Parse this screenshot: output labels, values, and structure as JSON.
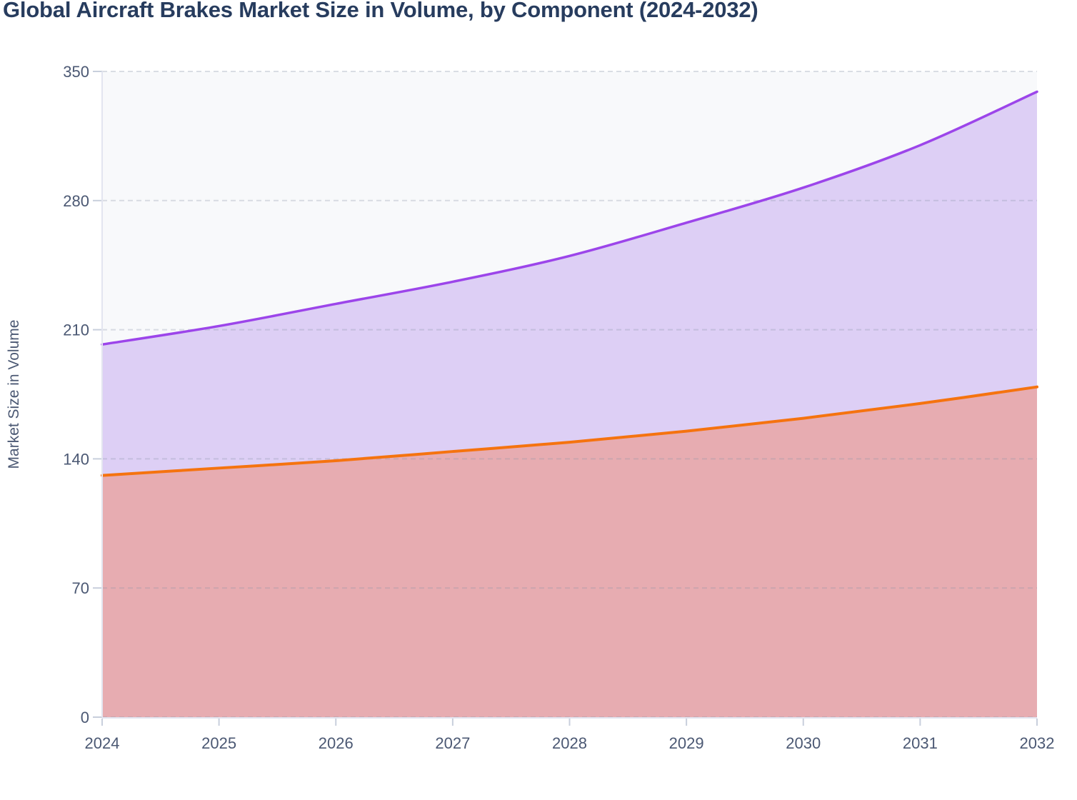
{
  "title": {
    "text": "Global Aircraft Brakes Market Size in Volume, by Component (2024-2032)",
    "color": "#273c5e"
  },
  "chart_data": {
    "type": "area",
    "stacked": true,
    "title": "Global Aircraft Brakes Market Size in Volume, by Component (2024-2032)",
    "xlabel": "",
    "ylabel": "Market Size in Volume",
    "x": [
      2024,
      2025,
      2026,
      2027,
      2028,
      2029,
      2030,
      2031,
      2032
    ],
    "series": [
      {
        "name": "lower-component-orange",
        "line_color": "#f5730f",
        "fill_color": "#e7acb1",
        "values": [
          131,
          135,
          139,
          144,
          149,
          155,
          162,
          170,
          179
        ]
      },
      {
        "name": "upper-component-purple",
        "line_color": "#9c45ea",
        "fill_color": "#ddcff5",
        "values": [
          71,
          77,
          85,
          92,
          101,
          113,
          125,
          140,
          160
        ]
      }
    ],
    "stacked_totals": [
      202,
      212,
      224,
      236,
      250,
      268,
      287,
      310,
      339
    ],
    "ylim": [
      0,
      350
    ],
    "yticks": [
      0,
      70,
      140,
      210,
      280,
      350
    ],
    "grid": "horizontal-dashed",
    "legend": "none",
    "curve": "spline",
    "plot_bg_color": "#f8f9fb",
    "grid_color": "rgba(140,150,170,0.30)",
    "axis_line_color": "#e3e5f0",
    "tick_mark_color": "#c8cfdc",
    "tick_label_color": "#4b5873"
  }
}
